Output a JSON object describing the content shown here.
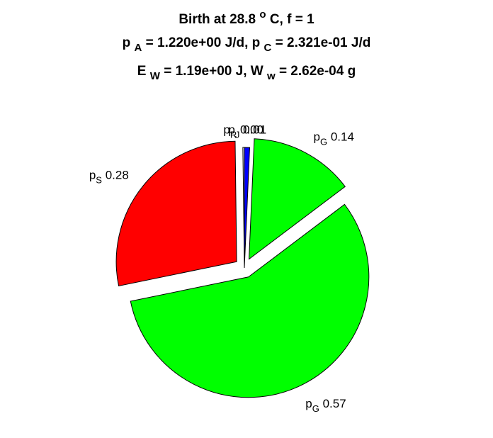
{
  "chart_data": {
    "type": "pie",
    "title": {
      "line1": {
        "prefix": "Birth at 28.8 ",
        "sup": "o",
        "suffix": "C, f = 1"
      },
      "line2": {
        "a_sym": "p",
        "a_sub": "A",
        "a_val": " = 1.220e+00 J/d, ",
        "c_sym": "p",
        "c_sub": "C",
        "c_val": " = 2.321e-01 J/d"
      },
      "line3": {
        "e_sym": "E",
        "e_sub": "W",
        "e_val": " = 1.19e+00 J, ",
        "w_sym": "W",
        "w_sub": "w",
        "w_val": " = 2.62e-04 g"
      }
    },
    "slices": [
      {
        "sym": "p",
        "sub": "J",
        "value_text": "0.01",
        "value": 0.007,
        "color": "#0000ff",
        "exploded": false
      },
      {
        "sym": "p",
        "sub": "G",
        "value_text": "0.14",
        "value": 0.14,
        "color": "#00ff00",
        "exploded": true
      },
      {
        "sym": "p",
        "sub": "G",
        "value_text": "0.57",
        "value": 0.57,
        "color": "#00ff00",
        "exploded": true
      },
      {
        "sym": "p",
        "sub": "S",
        "value_text": "0.28",
        "value": 0.28,
        "color": "#ff0000",
        "exploded": true
      },
      {
        "sym": "p",
        "sub": "R",
        "value_text": "0.00",
        "value": 0.002,
        "color": "#ffffff",
        "exploded": false
      }
    ],
    "start_angle_deg": 90,
    "direction": "clockwise",
    "grid": false,
    "legend": false
  }
}
